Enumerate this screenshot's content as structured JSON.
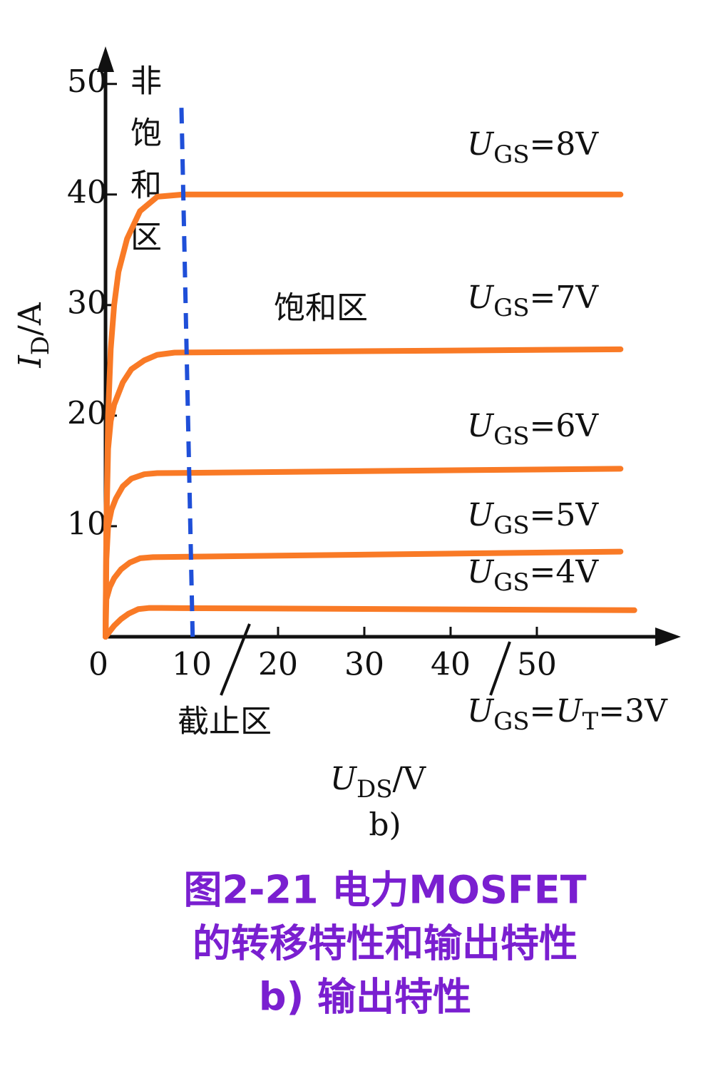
{
  "chart_data": {
    "type": "line",
    "y_label": [
      "I",
      "D",
      "/A"
    ],
    "x_label": [
      "U",
      "DS",
      "/V"
    ],
    "panel_label": "b)",
    "xlim": [
      0,
      66.7
    ],
    "ylim": [
      0,
      53.4
    ],
    "xticks": [
      0,
      10,
      20,
      30,
      40,
      50
    ],
    "yticks": [
      10,
      20,
      30,
      40,
      50
    ],
    "series": [
      {
        "name": [
          "U",
          "GS",
          "=8V"
        ],
        "color": "#f97a26",
        "x": [
          0,
          0.1,
          0.3,
          0.6,
          1,
          1.5,
          2.5,
          4,
          6,
          9,
          59.7
        ],
        "values": [
          0,
          10,
          20,
          26,
          30,
          33,
          36,
          38.5,
          39.8,
          40,
          40
        ]
      },
      {
        "name": [
          "U",
          "GS",
          "=7V"
        ],
        "color": "#f97a26",
        "x": [
          0,
          0.1,
          0.3,
          0.6,
          1,
          2,
          3,
          4.5,
          6,
          8,
          59.7
        ],
        "values": [
          0,
          10,
          17,
          19.5,
          21,
          23,
          24.2,
          25,
          25.5,
          25.7,
          26
        ]
      },
      {
        "name": [
          "U",
          "GS",
          "=6V"
        ],
        "color": "#f97a26",
        "x": [
          0,
          0.1,
          0.3,
          0.7,
          1.2,
          2,
          3,
          4.5,
          6,
          59.7
        ],
        "values": [
          0,
          7,
          10,
          11.5,
          12.5,
          13.6,
          14.3,
          14.7,
          14.8,
          15.2
        ]
      },
      {
        "name": [
          "U",
          "GS",
          "=5V"
        ],
        "color": "#f97a26",
        "x": [
          0,
          0.1,
          0.5,
          1,
          1.8,
          2.8,
          4,
          5.5,
          59.7
        ],
        "values": [
          0,
          3.4,
          4.5,
          5.3,
          6.1,
          6.7,
          7.1,
          7.2,
          7.7
        ]
      },
      {
        "name": [
          "U",
          "GS",
          "=4V"
        ],
        "color": "#f97a26",
        "x": [
          0,
          0.5,
          1,
          1.8,
          2.7,
          3.8,
          5,
          6.5,
          61.3
        ],
        "values": [
          0,
          0.5,
          1,
          1.6,
          2.1,
          2.5,
          2.6,
          2.6,
          2.4
        ]
      }
    ],
    "boundary": {
      "color": "#1f4fd8",
      "x": [
        10.1,
        8.8
      ],
      "values": [
        0,
        47.9
      ]
    },
    "cutoff_label": [
      "U",
      "GS",
      "=",
      "U",
      "T",
      "=3V"
    ],
    "region_labels": {
      "non_saturation": [
        "非",
        "饱",
        "和",
        "区"
      ],
      "saturation": "饱和区",
      "cutoff": "截止区"
    },
    "caption": [
      "图2-21  电力MOSFET",
      "的转移特性和输出特性",
      "b) 输出特性"
    ]
  }
}
